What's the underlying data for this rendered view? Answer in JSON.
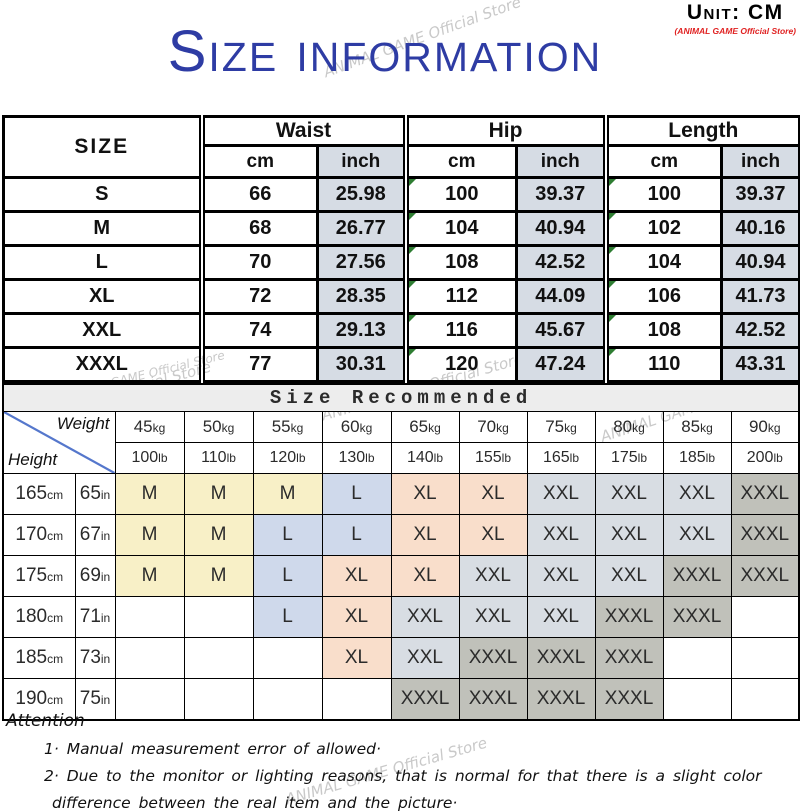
{
  "header": {
    "unit": "Unit: CM",
    "store": "(ANIMAL GAME Official Store)",
    "title": "Size information"
  },
  "watermark": {
    "text": "ANIMAL GAME Official Store",
    "color": "#c9c9c9"
  },
  "size_table": {
    "size_header": "SIZE",
    "col_groups": [
      "Waist",
      "Hip",
      "Length"
    ],
    "sub_headers": [
      "cm",
      "inch"
    ],
    "inch_bg": "#d6dce4",
    "rows": [
      {
        "size": "S",
        "waist_cm": "66",
        "waist_inch": "25.98",
        "hip_cm": "100",
        "hip_inch": "39.37",
        "length_cm": "100",
        "length_inch": "39.37"
      },
      {
        "size": "M",
        "waist_cm": "68",
        "waist_inch": "26.77",
        "hip_cm": "104",
        "hip_inch": "40.94",
        "length_cm": "102",
        "length_inch": "40.16"
      },
      {
        "size": "L",
        "waist_cm": "70",
        "waist_inch": "27.56",
        "hip_cm": "108",
        "hip_inch": "42.52",
        "length_cm": "104",
        "length_inch": "40.94"
      },
      {
        "size": "XL",
        "waist_cm": "72",
        "waist_inch": "28.35",
        "hip_cm": "112",
        "hip_inch": "44.09",
        "length_cm": "106",
        "length_inch": "41.73"
      },
      {
        "size": "XXL",
        "waist_cm": "74",
        "waist_inch": "29.13",
        "hip_cm": "116",
        "hip_inch": "45.67",
        "length_cm": "108",
        "length_inch": "42.52"
      },
      {
        "size": "XXXL",
        "waist_cm": "77",
        "waist_inch": "30.31",
        "hip_cm": "120",
        "hip_inch": "47.24",
        "length_cm": "110",
        "length_inch": "43.31"
      }
    ]
  },
  "recommend_table": {
    "title": "Size Recommended",
    "weight_label": "Weight",
    "height_label": "Height",
    "weights_kg": [
      "45kg",
      "50kg",
      "55kg",
      "60kg",
      "65kg",
      "70kg",
      "75kg",
      "80kg",
      "85kg",
      "90kg"
    ],
    "weights_lb": [
      "100lb",
      "110lb",
      "120lb",
      "130lb",
      "140lb",
      "155lb",
      "165lb",
      "175lb",
      "185lb",
      "200lb"
    ],
    "rows": [
      {
        "height_cm": "165cm",
        "height_in": "65in",
        "sizes": [
          "M",
          "M",
          "M",
          "L",
          "XL",
          "XL",
          "XXL",
          "XXL",
          "XXL",
          "XXXL"
        ]
      },
      {
        "height_cm": "170cm",
        "height_in": "67in",
        "sizes": [
          "M",
          "M",
          "L",
          "L",
          "XL",
          "XL",
          "XXL",
          "XXL",
          "XXL",
          "XXXL"
        ]
      },
      {
        "height_cm": "175cm",
        "height_in": "69in",
        "sizes": [
          "M",
          "M",
          "L",
          "XL",
          "XL",
          "XXL",
          "XXL",
          "XXL",
          "XXXL",
          "XXXL"
        ]
      },
      {
        "height_cm": "180cm",
        "height_in": "71in",
        "sizes": [
          "",
          "",
          "L",
          "XL",
          "XXL",
          "XXL",
          "XXL",
          "XXXL",
          "XXXL",
          ""
        ]
      },
      {
        "height_cm": "185cm",
        "height_in": "73in",
        "sizes": [
          "",
          "",
          "",
          "XL",
          "XXL",
          "XXXL",
          "XXXL",
          "XXXL",
          "",
          ""
        ]
      },
      {
        "height_cm": "190cm",
        "height_in": "75in",
        "sizes": [
          "",
          "",
          "",
          "",
          "XXXL",
          "XXXL",
          "XXXL",
          "XXXL",
          "",
          ""
        ]
      }
    ],
    "size_colors": {
      "M": "#f8f0c7",
      "L": "#cfd9eb",
      "XL": "#f9decb",
      "XXL": "#d8dde3",
      "XXXL": "#c0c1ba",
      "diagonal_line": "#5577cc",
      "triangle_green": "#2e7d32"
    }
  },
  "attention": {
    "title": "Attention",
    "lines": [
      "1· Manual measurement error of allowed·",
      "2·  Due to the monitor or lighting reasons, that is normal for that there is a slight color",
      "difference between the real item and the picture·"
    ]
  }
}
